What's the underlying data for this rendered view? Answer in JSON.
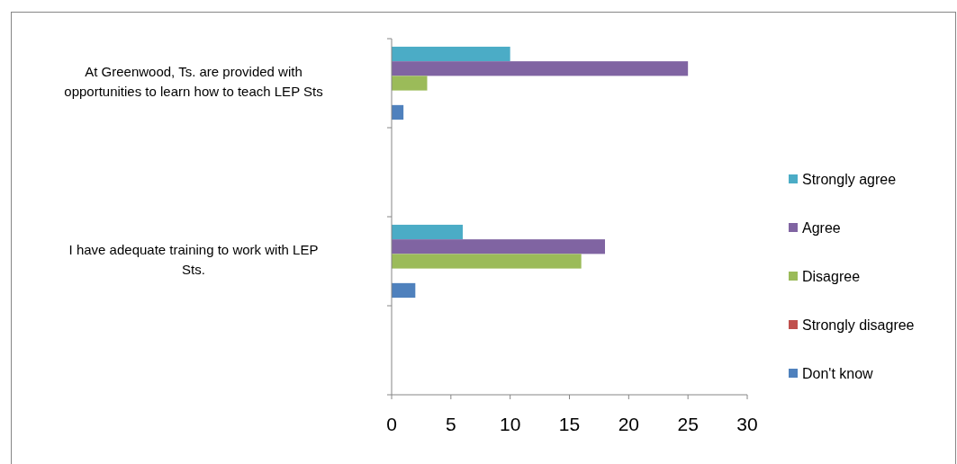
{
  "chart_data": {
    "type": "bar",
    "orientation": "horizontal",
    "categories": [
      "At Greenwood, Ts. are provided with opportunities to learn how to teach LEP Sts",
      null,
      "I have adequate training to work with LEP Sts.",
      null
    ],
    "series": [
      {
        "name": "Strongly agree",
        "color": "#4bacc6",
        "values": [
          10,
          null,
          6,
          null
        ]
      },
      {
        "name": "Agree",
        "color": "#8064a2",
        "values": [
          25,
          null,
          18,
          null
        ]
      },
      {
        "name": "Disagree",
        "color": "#9bbb59",
        "values": [
          3,
          null,
          16,
          null
        ]
      },
      {
        "name": "Strongly disagree",
        "color": "#c0504d",
        "values": [
          0,
          null,
          0,
          null
        ]
      },
      {
        "name": "Don't know",
        "color": "#4f81bd",
        "values": [
          1,
          null,
          2,
          null
        ]
      }
    ],
    "xlim": [
      0,
      30
    ],
    "xticks": [
      0,
      5,
      10,
      15,
      20,
      25,
      30
    ],
    "grid": false,
    "legend": "right"
  }
}
